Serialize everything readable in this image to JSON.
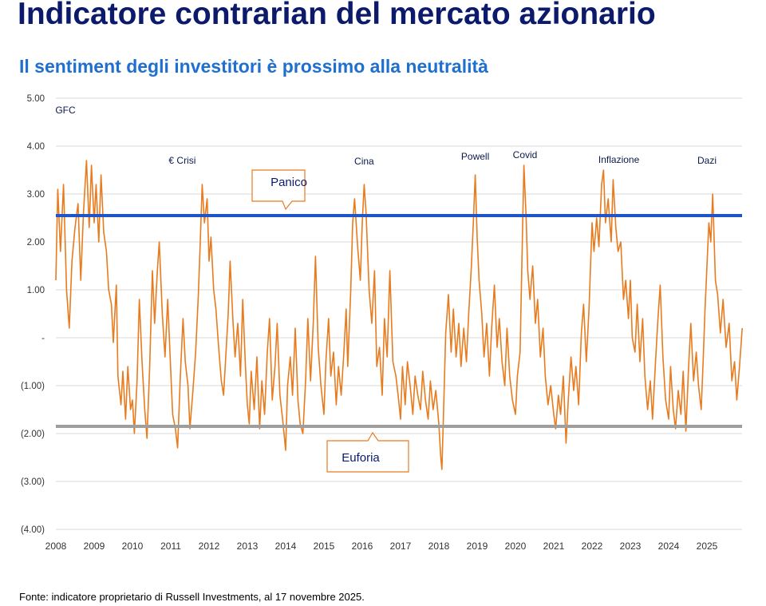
{
  "title": "Indicatore contrarian del mercato azionario",
  "subtitle": "Il sentiment degli investitori è prossimo alla neutralità",
  "source": "Fonte: indicatore proprietario di Russell Investments, al 17 novembre 2025.",
  "colors": {
    "series": "#e87b1e",
    "panic_line": "#1f55c8",
    "euphoria_line": "#9e9e9e",
    "callout_border": "#e87b1e",
    "title": "#0b1a6b",
    "subtitle": "#1f6fd1"
  },
  "chart_data": {
    "type": "line",
    "title": "",
    "xlabel": "",
    "ylabel": "",
    "ylim": [
      -4,
      5
    ],
    "xlim": [
      2008,
      2025.92
    ],
    "grid": true,
    "y_ticks": [
      5,
      4,
      3,
      2,
      1,
      0,
      -1,
      -2,
      -3,
      -4
    ],
    "y_tick_labels": [
      "5.00",
      "4.00",
      "3.00",
      "2.00",
      "1.00",
      "-",
      "(1.00)",
      "(2.00)",
      "(3.00)",
      "(4.00)"
    ],
    "x_ticks": [
      2008,
      2009,
      2010,
      2011,
      2012,
      2013,
      2014,
      2015,
      2016,
      2017,
      2018,
      2019,
      2020,
      2021,
      2022,
      2023,
      2024,
      2025
    ],
    "x_tick_labels": [
      "2008",
      "2009",
      "2010",
      "2011",
      "2012",
      "2013",
      "2014",
      "2015",
      "2016",
      "2017",
      "2018",
      "2019",
      "2020",
      "2021",
      "2022",
      "2023",
      "2024",
      "2025"
    ],
    "thresholds": [
      {
        "value": 2.55,
        "label": "Panico"
      },
      {
        "value": -1.85,
        "label": "Euforia"
      }
    ],
    "events": [
      {
        "label": "GFC",
        "x": 2008.25,
        "y": 4.75
      },
      {
        "label": "€ Crisi",
        "x": 2011.3,
        "y": 3.7
      },
      {
        "label": "Cina",
        "x": 2016.05,
        "y": 3.68
      },
      {
        "label": "Powell",
        "x": 2018.95,
        "y": 3.78
      },
      {
        "label": "Covid",
        "x": 2020.25,
        "y": 3.82
      },
      {
        "label": "Inflazione",
        "x": 2022.7,
        "y": 3.72
      },
      {
        "label": "Dazi",
        "x": 2025,
        "y": 3.7
      }
    ],
    "series": [
      {
        "values": [
          [
            2008.0,
            1.2
          ],
          [
            2008.05,
            3.1
          ],
          [
            2008.12,
            1.8
          ],
          [
            2008.2,
            3.2
          ],
          [
            2008.28,
            1.0
          ],
          [
            2008.35,
            0.2
          ],
          [
            2008.42,
            1.6
          ],
          [
            2008.5,
            2.3
          ],
          [
            2008.58,
            2.8
          ],
          [
            2008.65,
            1.2
          ],
          [
            2008.72,
            2.6
          ],
          [
            2008.8,
            3.7
          ],
          [
            2008.87,
            2.3
          ],
          [
            2008.93,
            3.6
          ],
          [
            2009.0,
            2.4
          ],
          [
            2009.05,
            3.2
          ],
          [
            2009.12,
            2.0
          ],
          [
            2009.18,
            3.4
          ],
          [
            2009.25,
            2.2
          ],
          [
            2009.32,
            1.8
          ],
          [
            2009.38,
            1.0
          ],
          [
            2009.45,
            0.7
          ],
          [
            2009.5,
            -0.1
          ],
          [
            2009.58,
            1.1
          ],
          [
            2009.62,
            -0.8
          ],
          [
            2009.7,
            -1.4
          ],
          [
            2009.75,
            -0.7
          ],
          [
            2009.82,
            -1.7
          ],
          [
            2009.88,
            -0.6
          ],
          [
            2009.95,
            -1.5
          ],
          [
            2010.0,
            -1.3
          ],
          [
            2010.05,
            -2.0
          ],
          [
            2010.12,
            -0.9
          ],
          [
            2010.18,
            0.8
          ],
          [
            2010.25,
            -0.5
          ],
          [
            2010.32,
            -1.5
          ],
          [
            2010.38,
            -2.1
          ],
          [
            2010.45,
            -0.6
          ],
          [
            2010.52,
            1.4
          ],
          [
            2010.58,
            0.3
          ],
          [
            2010.65,
            1.4
          ],
          [
            2010.7,
            2.0
          ],
          [
            2010.78,
            0.5
          ],
          [
            2010.85,
            -0.4
          ],
          [
            2010.92,
            0.8
          ],
          [
            2011.0,
            -0.7
          ],
          [
            2011.05,
            -1.6
          ],
          [
            2011.12,
            -1.9
          ],
          [
            2011.18,
            -2.3
          ],
          [
            2011.25,
            -0.8
          ],
          [
            2011.32,
            0.4
          ],
          [
            2011.38,
            -0.5
          ],
          [
            2011.45,
            -1.0
          ],
          [
            2011.5,
            -1.9
          ],
          [
            2011.58,
            -1.1
          ],
          [
            2011.65,
            -0.3
          ],
          [
            2011.72,
            0.9
          ],
          [
            2011.78,
            2.2
          ],
          [
            2011.82,
            3.2
          ],
          [
            2011.88,
            2.4
          ],
          [
            2011.95,
            2.9
          ],
          [
            2012.0,
            1.6
          ],
          [
            2012.05,
            2.1
          ],
          [
            2012.12,
            1.0
          ],
          [
            2012.18,
            0.6
          ],
          [
            2012.25,
            -0.2
          ],
          [
            2012.32,
            -0.9
          ],
          [
            2012.38,
            -1.2
          ],
          [
            2012.45,
            -0.2
          ],
          [
            2012.5,
            0.5
          ],
          [
            2012.55,
            1.6
          ],
          [
            2012.62,
            0.4
          ],
          [
            2012.68,
            -0.4
          ],
          [
            2012.75,
            0.3
          ],
          [
            2012.82,
            -0.8
          ],
          [
            2012.88,
            0.8
          ],
          [
            2012.95,
            -0.6
          ],
          [
            2013.0,
            -1.4
          ],
          [
            2013.05,
            -1.8
          ],
          [
            2013.1,
            -0.7
          ],
          [
            2013.18,
            -1.5
          ],
          [
            2013.25,
            -0.4
          ],
          [
            2013.32,
            -1.9
          ],
          [
            2013.38,
            -0.9
          ],
          [
            2013.45,
            -1.6
          ],
          [
            2013.52,
            -0.3
          ],
          [
            2013.58,
            0.4
          ],
          [
            2013.65,
            -1.3
          ],
          [
            2013.72,
            -0.6
          ],
          [
            2013.78,
            0.3
          ],
          [
            2013.85,
            -1.2
          ],
          [
            2013.92,
            -1.7
          ],
          [
            2014.0,
            -2.35
          ],
          [
            2014.05,
            -1.0
          ],
          [
            2014.12,
            -0.4
          ],
          [
            2014.18,
            -1.2
          ],
          [
            2014.25,
            0.2
          ],
          [
            2014.32,
            -1.3
          ],
          [
            2014.38,
            -1.8
          ],
          [
            2014.45,
            -2.0
          ],
          [
            2014.52,
            -0.9
          ],
          [
            2014.58,
            0.4
          ],
          [
            2014.65,
            -0.9
          ],
          [
            2014.72,
            0.3
          ],
          [
            2014.78,
            1.7
          ],
          [
            2014.85,
            -0.2
          ],
          [
            2014.92,
            -1.0
          ],
          [
            2015.0,
            -1.6
          ],
          [
            2015.05,
            -0.5
          ],
          [
            2015.12,
            0.4
          ],
          [
            2015.18,
            -0.8
          ],
          [
            2015.25,
            -0.3
          ],
          [
            2015.32,
            -1.4
          ],
          [
            2015.38,
            -0.6
          ],
          [
            2015.45,
            -1.2
          ],
          [
            2015.52,
            -0.3
          ],
          [
            2015.58,
            0.6
          ],
          [
            2015.62,
            -0.6
          ],
          [
            2015.7,
            1.0
          ],
          [
            2015.75,
            2.4
          ],
          [
            2015.8,
            2.9
          ],
          [
            2015.88,
            1.9
          ],
          [
            2015.95,
            1.2
          ],
          [
            2016.0,
            2.4
          ],
          [
            2016.05,
            3.2
          ],
          [
            2016.1,
            2.6
          ],
          [
            2016.18,
            1.0
          ],
          [
            2016.25,
            0.3
          ],
          [
            2016.32,
            1.4
          ],
          [
            2016.38,
            -0.6
          ],
          [
            2016.45,
            -0.2
          ],
          [
            2016.52,
            -1.2
          ],
          [
            2016.58,
            0.4
          ],
          [
            2016.65,
            -0.4
          ],
          [
            2016.72,
            1.4
          ],
          [
            2016.8,
            -0.5
          ],
          [
            2016.88,
            -0.8
          ],
          [
            2016.95,
            -1.3
          ],
          [
            2017.0,
            -1.7
          ],
          [
            2017.05,
            -0.6
          ],
          [
            2017.12,
            -1.4
          ],
          [
            2017.18,
            -0.5
          ],
          [
            2017.25,
            -1.0
          ],
          [
            2017.32,
            -1.6
          ],
          [
            2017.38,
            -0.8
          ],
          [
            2017.45,
            -1.2
          ],
          [
            2017.52,
            -1.5
          ],
          [
            2017.58,
            -0.7
          ],
          [
            2017.65,
            -1.3
          ],
          [
            2017.72,
            -1.7
          ],
          [
            2017.78,
            -0.9
          ],
          [
            2017.85,
            -1.5
          ],
          [
            2017.92,
            -1.1
          ],
          [
            2018.0,
            -1.8
          ],
          [
            2018.05,
            -2.5
          ],
          [
            2018.08,
            -2.75
          ],
          [
            2018.12,
            -1.6
          ],
          [
            2018.18,
            0.1
          ],
          [
            2018.25,
            0.9
          ],
          [
            2018.32,
            -0.3
          ],
          [
            2018.38,
            0.6
          ],
          [
            2018.45,
            -0.4
          ],
          [
            2018.52,
            0.3
          ],
          [
            2018.58,
            -0.6
          ],
          [
            2018.65,
            0.2
          ],
          [
            2018.72,
            -0.5
          ],
          [
            2018.78,
            0.5
          ],
          [
            2018.85,
            1.5
          ],
          [
            2018.9,
            2.4
          ],
          [
            2018.95,
            3.4
          ],
          [
            2019.0,
            2.1
          ],
          [
            2019.05,
            1.2
          ],
          [
            2019.12,
            0.5
          ],
          [
            2019.18,
            -0.4
          ],
          [
            2019.25,
            0.3
          ],
          [
            2019.32,
            -0.8
          ],
          [
            2019.38,
            0.2
          ],
          [
            2019.45,
            1.1
          ],
          [
            2019.52,
            -0.2
          ],
          [
            2019.58,
            0.4
          ],
          [
            2019.65,
            -0.5
          ],
          [
            2019.72,
            -1.0
          ],
          [
            2019.78,
            0.2
          ],
          [
            2019.85,
            -0.8
          ],
          [
            2019.92,
            -1.3
          ],
          [
            2020.0,
            -1.6
          ],
          [
            2020.05,
            -0.8
          ],
          [
            2020.12,
            -0.3
          ],
          [
            2020.18,
            2.0
          ],
          [
            2020.22,
            3.6
          ],
          [
            2020.28,
            2.5
          ],
          [
            2020.32,
            1.4
          ],
          [
            2020.38,
            0.8
          ],
          [
            2020.45,
            1.5
          ],
          [
            2020.52,
            0.3
          ],
          [
            2020.58,
            0.8
          ],
          [
            2020.65,
            -0.4
          ],
          [
            2020.72,
            0.2
          ],
          [
            2020.78,
            -0.8
          ],
          [
            2020.85,
            -1.4
          ],
          [
            2020.92,
            -1.0
          ],
          [
            2021.0,
            -1.6
          ],
          [
            2021.05,
            -1.9
          ],
          [
            2021.12,
            -1.2
          ],
          [
            2021.18,
            -1.6
          ],
          [
            2021.25,
            -0.8
          ],
          [
            2021.32,
            -2.2
          ],
          [
            2021.38,
            -1.3
          ],
          [
            2021.45,
            -0.4
          ],
          [
            2021.52,
            -1.1
          ],
          [
            2021.58,
            -0.6
          ],
          [
            2021.65,
            -1.4
          ],
          [
            2021.72,
            0.1
          ],
          [
            2021.78,
            0.7
          ],
          [
            2021.85,
            -0.5
          ],
          [
            2021.92,
            0.6
          ],
          [
            2022.0,
            2.4
          ],
          [
            2022.05,
            1.8
          ],
          [
            2022.12,
            2.5
          ],
          [
            2022.18,
            1.9
          ],
          [
            2022.25,
            3.2
          ],
          [
            2022.3,
            3.5
          ],
          [
            2022.35,
            2.4
          ],
          [
            2022.42,
            2.9
          ],
          [
            2022.5,
            2.0
          ],
          [
            2022.55,
            3.3
          ],
          [
            2022.62,
            2.3
          ],
          [
            2022.68,
            1.8
          ],
          [
            2022.75,
            2.0
          ],
          [
            2022.82,
            0.8
          ],
          [
            2022.88,
            1.2
          ],
          [
            2022.95,
            0.4
          ],
          [
            2023.0,
            1.2
          ],
          [
            2023.05,
            0.0
          ],
          [
            2023.12,
            -0.3
          ],
          [
            2023.18,
            0.7
          ],
          [
            2023.25,
            -0.5
          ],
          [
            2023.32,
            0.4
          ],
          [
            2023.38,
            -0.8
          ],
          [
            2023.45,
            -1.5
          ],
          [
            2023.52,
            -0.9
          ],
          [
            2023.58,
            -1.7
          ],
          [
            2023.65,
            -0.6
          ],
          [
            2023.72,
            0.4
          ],
          [
            2023.78,
            1.1
          ],
          [
            2023.85,
            -0.4
          ],
          [
            2023.92,
            -1.3
          ],
          [
            2024.0,
            -1.7
          ],
          [
            2024.05,
            -0.6
          ],
          [
            2024.12,
            -1.5
          ],
          [
            2024.18,
            -1.9
          ],
          [
            2024.25,
            -1.1
          ],
          [
            2024.32,
            -1.6
          ],
          [
            2024.38,
            -0.7
          ],
          [
            2024.45,
            -1.95
          ],
          [
            2024.52,
            -0.6
          ],
          [
            2024.58,
            0.3
          ],
          [
            2024.65,
            -0.9
          ],
          [
            2024.72,
            -0.3
          ],
          [
            2024.78,
            -1.0
          ],
          [
            2024.85,
            -1.5
          ],
          [
            2024.9,
            -0.5
          ],
          [
            2024.95,
            0.6
          ],
          [
            2025.0,
            1.5
          ],
          [
            2025.05,
            2.4
          ],
          [
            2025.1,
            2.0
          ],
          [
            2025.15,
            3.0
          ],
          [
            2025.22,
            1.2
          ],
          [
            2025.28,
            0.9
          ],
          [
            2025.35,
            0.1
          ],
          [
            2025.42,
            0.8
          ],
          [
            2025.5,
            -0.2
          ],
          [
            2025.58,
            0.3
          ],
          [
            2025.65,
            -0.9
          ],
          [
            2025.72,
            -0.5
          ],
          [
            2025.78,
            -1.3
          ],
          [
            2025.85,
            -0.6
          ],
          [
            2025.92,
            0.2
          ]
        ]
      }
    ]
  }
}
